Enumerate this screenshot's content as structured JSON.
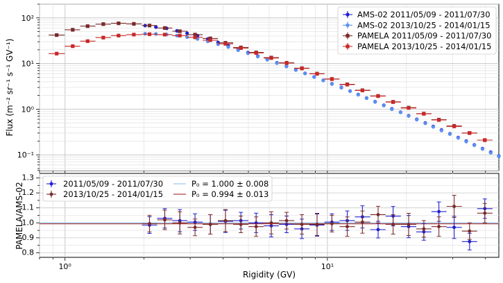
{
  "chart_data": [
    {
      "type": "scatter",
      "panel": "top",
      "xscale": "log",
      "yscale": "log",
      "xlim": [
        0.8,
        45
      ],
      "ylim": [
        0.045,
        200
      ],
      "ylabel": "Flux (m⁻² sr⁻¹ s⁻¹ GV⁻¹)",
      "yticks": [
        {
          "v": 0.1,
          "label": "10⁻¹"
        },
        {
          "v": 1,
          "label": "10⁰"
        },
        {
          "v": 10,
          "label": "10¹"
        },
        {
          "v": 100,
          "label": "10²"
        }
      ],
      "grid": true,
      "legend_position": "top-right",
      "series": [
        {
          "name": "AMS-02 2011/05/09 - 2011/07/30",
          "color": "#1f1fd0",
          "x": [
            2.02,
            2.22,
            2.44,
            2.67,
            2.92,
            3.2,
            3.5,
            3.83,
            4.19,
            4.57,
            4.98,
            5.43,
            5.9,
            6.42,
            6.98,
            7.58,
            8.22,
            8.9,
            9.64,
            10.4,
            11.3,
            12.2,
            13.1,
            14.1,
            15.2,
            16.4,
            17.6,
            19.0,
            20.4,
            21.9,
            23.6,
            25.3,
            27.2,
            29.3,
            31.5,
            33.8,
            36.3,
            39.0,
            41.9,
            45.0
          ],
          "y": [
            68,
            63,
            59,
            52,
            46,
            41,
            34.5,
            29,
            24.5,
            20.5,
            17.4,
            14.6,
            12.4,
            10.4,
            8.7,
            7.3,
            6.1,
            5.1,
            4.3,
            3.6,
            3.0,
            2.5,
            2.1,
            1.75,
            1.46,
            1.22,
            1.02,
            0.86,
            0.72,
            0.6,
            0.5,
            0.42,
            0.35,
            0.29,
            0.24,
            0.2,
            0.165,
            0.137,
            0.114,
            0.094
          ]
        },
        {
          "name": "AMS-02 2013/10/25 - 2014/01/15",
          "color": "#5b8ff0",
          "x": [
            2.02,
            2.22,
            2.44,
            2.67,
            2.92,
            3.2,
            3.5,
            3.83,
            4.19,
            4.57,
            4.98,
            5.43,
            5.9,
            6.42,
            6.98,
            7.58,
            8.22,
            8.9,
            9.64,
            10.4,
            11.3,
            12.2,
            13.1,
            14.1,
            15.2,
            16.4,
            17.6,
            19.0,
            20.4,
            21.9,
            23.6,
            25.3,
            27.2,
            29.3,
            31.5,
            33.8,
            36.3,
            39.0,
            41.9,
            45.0
          ],
          "y": [
            45,
            44.5,
            43.5,
            41,
            38,
            34.5,
            30.5,
            26.5,
            23,
            19.6,
            16.8,
            14.2,
            12.1,
            10.2,
            8.6,
            7.2,
            6.05,
            5.05,
            4.25,
            3.55,
            2.95,
            2.48,
            2.07,
            1.73,
            1.44,
            1.2,
            1.0,
            0.85,
            0.71,
            0.59,
            0.49,
            0.41,
            0.34,
            0.285,
            0.235,
            0.195,
            0.162,
            0.134,
            0.111,
            0.092
          ]
        },
        {
          "name": "PAMELA 2011/05/09 - 2011/07/30",
          "color": "#7a2a2a",
          "x": [
            0.93,
            1.07,
            1.22,
            1.4,
            1.6,
            1.83,
            2.1,
            2.4,
            2.74,
            3.13,
            3.58,
            4.09,
            4.68,
            5.35,
            6.11,
            6.99,
            7.99,
            9.13,
            10.4,
            11.9,
            13.6,
            15.6,
            17.8,
            20.4,
            23.3,
            26.6,
            30.4,
            34.8,
            39.8,
            45.5
          ],
          "y": [
            42,
            55,
            66,
            73,
            76,
            74,
            68,
            60,
            51,
            43,
            35.5,
            28.5,
            22.5,
            17.5,
            13.5,
            10.4,
            7.9,
            6.0,
            4.6,
            3.5,
            2.6,
            1.95,
            1.45,
            1.08,
            0.8,
            0.59,
            0.43,
            0.3,
            0.21,
            0.15
          ]
        },
        {
          "name": "PAMELA 2013/10/25 - 2014/01/15",
          "color": "#c82828",
          "x": [
            0.93,
            1.07,
            1.22,
            1.4,
            1.6,
            1.83,
            2.1,
            2.4,
            2.74,
            3.13,
            3.58,
            4.09,
            4.68,
            5.35,
            6.11,
            6.99,
            7.99,
            9.13,
            10.4,
            11.9,
            13.6,
            15.6,
            17.8,
            20.4,
            23.3,
            26.6,
            30.4,
            34.8,
            39.8,
            45.5
          ],
          "y": [
            16.5,
            24,
            31,
            37,
            41,
            43,
            44,
            43,
            41,
            37.5,
            32.5,
            27,
            21.8,
            17.1,
            13.2,
            10.2,
            7.8,
            5.95,
            4.55,
            3.45,
            2.57,
            1.93,
            1.43,
            1.06,
            0.79,
            0.58,
            0.42,
            0.3,
            0.21,
            0.15
          ]
        }
      ]
    },
    {
      "type": "scatter",
      "panel": "bottom",
      "xscale": "log",
      "xlim": [
        0.8,
        45
      ],
      "ylim": [
        0.77,
        1.33
      ],
      "xlabel": "Rigidity (GV)",
      "ylabel": "PAMELA/AMS-02",
      "xticks": [
        {
          "v": 1,
          "label": "10⁰"
        },
        {
          "v": 10,
          "label": "10¹"
        }
      ],
      "yticks": [
        "0.8",
        "0.9",
        "1.0",
        "1.1",
        "1.2",
        "1.3"
      ],
      "grid": true,
      "legend_position": "top-left",
      "series": [
        {
          "name": "2011/05/09 - 2011/07/30",
          "color": "#1f1fd0",
          "x": [
            2.1,
            2.4,
            2.74,
            3.13,
            3.58,
            4.09,
            4.68,
            5.35,
            6.11,
            6.99,
            7.99,
            9.13,
            10.4,
            11.9,
            13.6,
            15.6,
            17.8,
            20.4,
            23.3,
            26.6,
            30.4,
            34.8,
            39.8
          ],
          "y": [
            0.985,
            1.03,
            1.015,
            1.005,
            0.99,
            1.01,
            1.015,
            1.0,
            0.98,
            0.99,
            0.96,
            0.985,
            1.005,
            1.015,
            1.04,
            0.955,
            1.045,
            0.975,
            0.94,
            1.075,
            0.97,
            0.875,
            1.095
          ]
        },
        {
          "name": "2013/10/25 - 2014/01/15",
          "color": "#7a2a2a",
          "x": [
            2.1,
            2.4,
            2.74,
            3.13,
            3.58,
            4.09,
            4.68,
            5.35,
            6.11,
            6.99,
            7.99,
            9.13,
            10.4,
            11.9,
            13.6,
            15.6,
            17.8,
            20.4,
            23.3,
            26.6,
            30.4,
            34.8,
            39.8
          ],
          "y": [
            0.995,
            1.02,
            1.0,
            0.97,
            0.99,
            1.015,
            0.99,
            0.975,
            1.0,
            1.015,
            0.99,
            0.99,
            0.995,
            0.975,
            1.005,
            1.055,
            0.99,
            0.99,
            0.96,
            0.975,
            1.11,
            0.945,
            1.065
          ]
        }
      ],
      "fits": [
        {
          "label": "P₀ = 1.000 ± 0.008",
          "value": 1.0,
          "color": "#9fc9f0"
        },
        {
          "label": "P₀ = 0.994 ± 0.013",
          "value": 0.994,
          "color": "#b04040"
        }
      ]
    }
  ]
}
